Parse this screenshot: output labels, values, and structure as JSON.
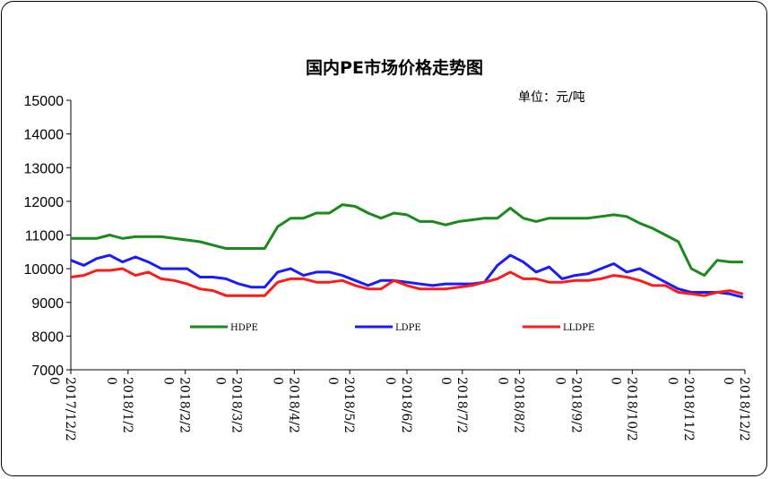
{
  "chart_data": {
    "type": "line",
    "title": "国内PE市场价格走势图",
    "unit_label": "单位：元/吨",
    "ylim": [
      7000,
      15000
    ],
    "yticks": [
      7000,
      8000,
      9000,
      10000,
      11000,
      12000,
      13000,
      14000,
      15000
    ],
    "xlim": [
      "2017/12/20",
      "2018/12/20"
    ],
    "xtick_labels": [
      "2017/12/20",
      "2018/1/20",
      "2018/2/20",
      "2018/3/20",
      "2018/4/20",
      "2018/5/20",
      "2018/6/20",
      "2018/7/20",
      "2018/8/20",
      "2018/9/20",
      "2018/10/20",
      "2018/11/20",
      "2018/12/20"
    ],
    "legend_position": "lower-middle",
    "series": [
      {
        "name": "HDPE",
        "color": "#1a8a1a",
        "points": [
          [
            "2017/12/20",
            10900
          ],
          [
            "2017/12/27",
            10900
          ],
          [
            "2018/1/3",
            10900
          ],
          [
            "2018/1/10",
            11000
          ],
          [
            "2018/1/17",
            10900
          ],
          [
            "2018/1/24",
            10950
          ],
          [
            "2018/1/31",
            10950
          ],
          [
            "2018/2/7",
            10950
          ],
          [
            "2018/2/21",
            10850
          ],
          [
            "2018/2/28",
            10800
          ],
          [
            "2018/3/7",
            10700
          ],
          [
            "2018/3/14",
            10600
          ],
          [
            "2018/3/21",
            10600
          ],
          [
            "2018/3/28",
            10600
          ],
          [
            "2018/4/4",
            10600
          ],
          [
            "2018/4/11",
            11250
          ],
          [
            "2018/4/18",
            11500
          ],
          [
            "2018/4/25",
            11500
          ],
          [
            "2018/5/2",
            11650
          ],
          [
            "2018/5/9",
            11650
          ],
          [
            "2018/5/16",
            11900
          ],
          [
            "2018/5/23",
            11850
          ],
          [
            "2018/5/30",
            11650
          ],
          [
            "2018/6/6",
            11500
          ],
          [
            "2018/6/13",
            11650
          ],
          [
            "2018/6/20",
            11600
          ],
          [
            "2018/6/27",
            11400
          ],
          [
            "2018/7/4",
            11400
          ],
          [
            "2018/7/11",
            11300
          ],
          [
            "2018/7/18",
            11400
          ],
          [
            "2018/7/25",
            11450
          ],
          [
            "2018/8/1",
            11500
          ],
          [
            "2018/8/8",
            11500
          ],
          [
            "2018/8/15",
            11800
          ],
          [
            "2018/8/22",
            11500
          ],
          [
            "2018/8/29",
            11400
          ],
          [
            "2018/9/5",
            11500
          ],
          [
            "2018/9/12",
            11500
          ],
          [
            "2018/9/19",
            11500
          ],
          [
            "2018/9/26",
            11500
          ],
          [
            "2018/10/3",
            11550
          ],
          [
            "2018/10/10",
            11600
          ],
          [
            "2018/10/17",
            11550
          ],
          [
            "2018/10/24",
            11350
          ],
          [
            "2018/10/31",
            11200
          ],
          [
            "2018/11/7",
            11000
          ],
          [
            "2018/11/14",
            10800
          ],
          [
            "2018/11/21",
            10000
          ],
          [
            "2018/11/28",
            9800
          ],
          [
            "2018/12/5",
            10250
          ],
          [
            "2018/12/12",
            10200
          ],
          [
            "2018/12/19",
            10200
          ]
        ]
      },
      {
        "name": "LDPE",
        "color": "#1a1aff",
        "points": [
          [
            "2017/12/20",
            10250
          ],
          [
            "2017/12/27",
            10100
          ],
          [
            "2018/1/3",
            10300
          ],
          [
            "2018/1/10",
            10400
          ],
          [
            "2018/1/17",
            10200
          ],
          [
            "2018/1/24",
            10350
          ],
          [
            "2018/1/31",
            10200
          ],
          [
            "2018/2/7",
            10000
          ],
          [
            "2018/2/14",
            10000
          ],
          [
            "2018/2/21",
            10000
          ],
          [
            "2018/2/28",
            9750
          ],
          [
            "2018/3/7",
            9750
          ],
          [
            "2018/3/14",
            9700
          ],
          [
            "2018/3/21",
            9550
          ],
          [
            "2018/3/28",
            9450
          ],
          [
            "2018/4/4",
            9450
          ],
          [
            "2018/4/11",
            9900
          ],
          [
            "2018/4/18",
            10000
          ],
          [
            "2018/4/25",
            9800
          ],
          [
            "2018/5/2",
            9900
          ],
          [
            "2018/5/9",
            9900
          ],
          [
            "2018/5/16",
            9800
          ],
          [
            "2018/5/23",
            9650
          ],
          [
            "2018/5/30",
            9500
          ],
          [
            "2018/6/6",
            9650
          ],
          [
            "2018/6/13",
            9650
          ],
          [
            "2018/6/20",
            9600
          ],
          [
            "2018/6/27",
            9550
          ],
          [
            "2018/7/4",
            9500
          ],
          [
            "2018/7/11",
            9550
          ],
          [
            "2018/7/18",
            9550
          ],
          [
            "2018/7/25",
            9550
          ],
          [
            "2018/8/1",
            9600
          ],
          [
            "2018/8/8",
            10100
          ],
          [
            "2018/8/15",
            10400
          ],
          [
            "2018/8/22",
            10200
          ],
          [
            "2018/8/29",
            9900
          ],
          [
            "2018/9/5",
            10050
          ],
          [
            "2018/9/12",
            9700
          ],
          [
            "2018/9/19",
            9800
          ],
          [
            "2018/9/26",
            9850
          ],
          [
            "2018/10/3",
            10000
          ],
          [
            "2018/10/10",
            10150
          ],
          [
            "2018/10/17",
            9900
          ],
          [
            "2018/10/24",
            10000
          ],
          [
            "2018/10/31",
            9800
          ],
          [
            "2018/11/7",
            9600
          ],
          [
            "2018/11/14",
            9400
          ],
          [
            "2018/11/21",
            9300
          ],
          [
            "2018/11/28",
            9300
          ],
          [
            "2018/12/5",
            9300
          ],
          [
            "2018/12/12",
            9250
          ],
          [
            "2018/12/19",
            9150
          ]
        ]
      },
      {
        "name": "LLDPE",
        "color": "#ff1a1a",
        "points": [
          [
            "2017/12/20",
            9750
          ],
          [
            "2017/12/27",
            9800
          ],
          [
            "2018/1/3",
            9950
          ],
          [
            "2018/1/10",
            9950
          ],
          [
            "2018/1/17",
            10000
          ],
          [
            "2018/1/24",
            9800
          ],
          [
            "2018/1/31",
            9900
          ],
          [
            "2018/2/7",
            9700
          ],
          [
            "2018/2/14",
            9650
          ],
          [
            "2018/2/21",
            9550
          ],
          [
            "2018/2/28",
            9400
          ],
          [
            "2018/3/7",
            9350
          ],
          [
            "2018/3/14",
            9200
          ],
          [
            "2018/3/21",
            9200
          ],
          [
            "2018/3/28",
            9200
          ],
          [
            "2018/4/4",
            9200
          ],
          [
            "2018/4/11",
            9600
          ],
          [
            "2018/4/18",
            9700
          ],
          [
            "2018/4/25",
            9700
          ],
          [
            "2018/5/2",
            9600
          ],
          [
            "2018/5/9",
            9600
          ],
          [
            "2018/5/16",
            9650
          ],
          [
            "2018/5/23",
            9500
          ],
          [
            "2018/5/30",
            9400
          ],
          [
            "2018/6/6",
            9400
          ],
          [
            "2018/6/13",
            9650
          ],
          [
            "2018/6/20",
            9500
          ],
          [
            "2018/6/27",
            9400
          ],
          [
            "2018/7/4",
            9400
          ],
          [
            "2018/7/11",
            9400
          ],
          [
            "2018/7/18",
            9450
          ],
          [
            "2018/7/25",
            9500
          ],
          [
            "2018/8/1",
            9600
          ],
          [
            "2018/8/8",
            9700
          ],
          [
            "2018/8/15",
            9900
          ],
          [
            "2018/8/22",
            9700
          ],
          [
            "2018/8/29",
            9700
          ],
          [
            "2018/9/5",
            9600
          ],
          [
            "2018/9/12",
            9600
          ],
          [
            "2018/9/19",
            9650
          ],
          [
            "2018/9/26",
            9650
          ],
          [
            "2018/10/3",
            9700
          ],
          [
            "2018/10/10",
            9800
          ],
          [
            "2018/10/17",
            9750
          ],
          [
            "2018/10/24",
            9650
          ],
          [
            "2018/10/31",
            9500
          ],
          [
            "2018/11/7",
            9500
          ],
          [
            "2018/11/14",
            9300
          ],
          [
            "2018/11/21",
            9250
          ],
          [
            "2018/11/28",
            9200
          ],
          [
            "2018/12/5",
            9300
          ],
          [
            "2018/12/12",
            9350
          ],
          [
            "2018/12/19",
            9250
          ]
        ]
      }
    ]
  }
}
